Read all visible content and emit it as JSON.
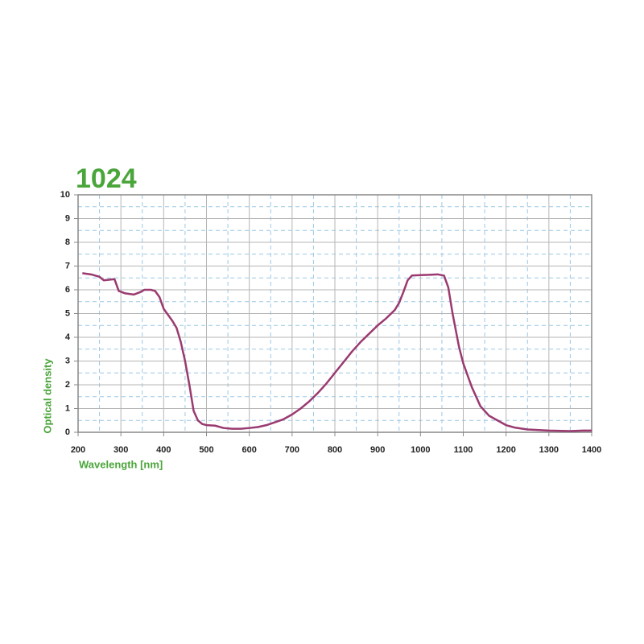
{
  "chart_data": {
    "type": "line",
    "title": "1024",
    "x_label": "Wavelength [nm]",
    "y_label": "Optical density",
    "x": [
      210,
      230,
      250,
      260,
      270,
      285,
      295,
      310,
      330,
      345,
      355,
      370,
      380,
      390,
      400,
      420,
      430,
      440,
      450,
      460,
      470,
      480,
      490,
      500,
      520,
      540,
      560,
      580,
      600,
      620,
      640,
      660,
      680,
      700,
      720,
      740,
      760,
      780,
      800,
      820,
      840,
      860,
      880,
      900,
      920,
      940,
      950,
      960,
      970,
      980,
      1000,
      1020,
      1040,
      1055,
      1065,
      1075,
      1090,
      1100,
      1120,
      1140,
      1160,
      1180,
      1200,
      1220,
      1250,
      1300,
      1350,
      1380,
      1400
    ],
    "series": [
      {
        "name": "1024",
        "color": "#9a3a70",
        "values": [
          6.7,
          6.65,
          6.55,
          6.4,
          6.42,
          6.45,
          5.95,
          5.85,
          5.8,
          5.9,
          6.0,
          6.0,
          5.95,
          5.7,
          5.2,
          4.7,
          4.4,
          3.8,
          3.0,
          2.0,
          0.9,
          0.5,
          0.35,
          0.3,
          0.28,
          0.18,
          0.15,
          0.15,
          0.18,
          0.22,
          0.3,
          0.42,
          0.55,
          0.75,
          1.0,
          1.3,
          1.65,
          2.05,
          2.5,
          2.95,
          3.4,
          3.8,
          4.15,
          4.5,
          4.8,
          5.15,
          5.45,
          5.9,
          6.4,
          6.6,
          6.62,
          6.63,
          6.65,
          6.6,
          6.1,
          5.0,
          3.6,
          2.9,
          1.9,
          1.1,
          0.7,
          0.5,
          0.3,
          0.2,
          0.12,
          0.07,
          0.05,
          0.07,
          0.07
        ]
      }
    ],
    "xlim": [
      200,
      1400
    ],
    "ylim": [
      0,
      10
    ],
    "xticks": [
      200,
      300,
      400,
      500,
      600,
      700,
      800,
      900,
      1000,
      1100,
      1200,
      1300,
      1400
    ],
    "yticks": [
      0,
      1,
      2,
      3,
      4,
      5,
      6,
      7,
      8,
      9,
      10
    ],
    "xminorticks": [
      250,
      350,
      450,
      550,
      650,
      750,
      850,
      950,
      1050,
      1150,
      1250,
      1350
    ],
    "yminorticks": [
      0.5,
      1.5,
      2.5,
      3.5,
      4.5,
      5.5,
      6.5,
      7.5,
      8.5,
      9.5
    ],
    "grid": true
  }
}
